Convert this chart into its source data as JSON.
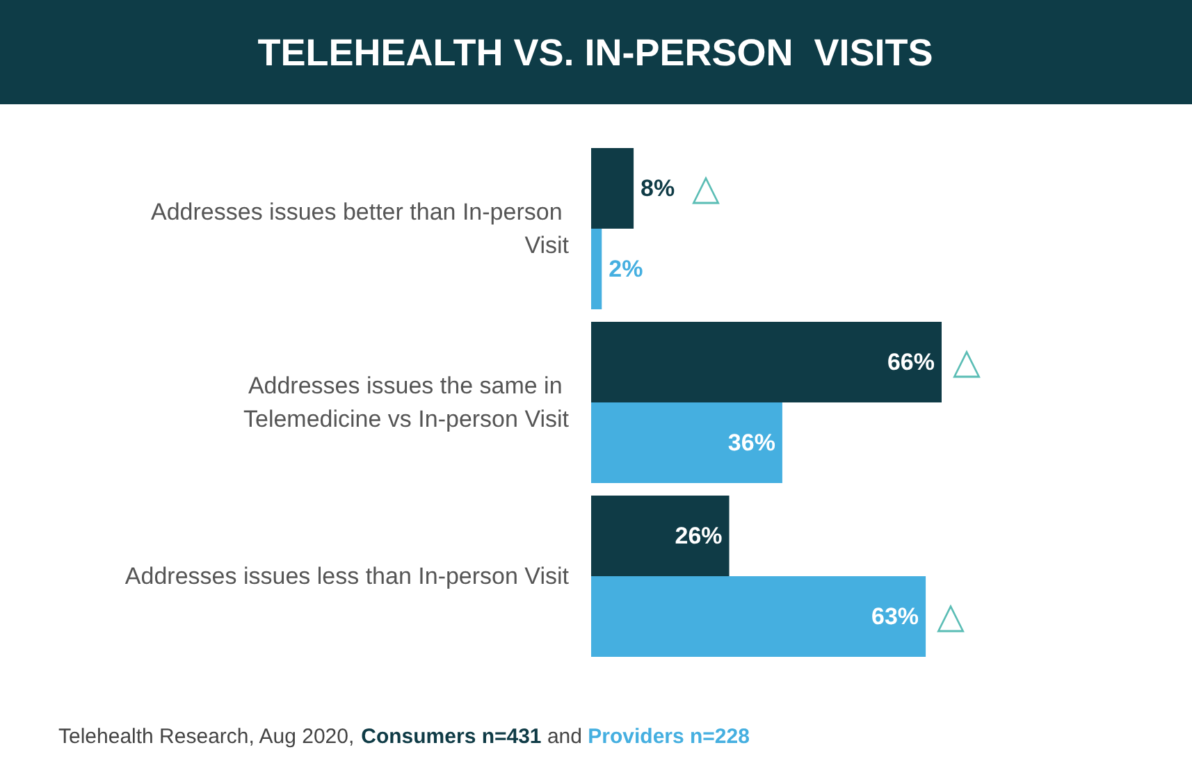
{
  "chart_data": {
    "type": "bar",
    "orientation": "horizontal",
    "title": "TELEHEALTH VS. IN-PERSON  VISITS",
    "categories": [
      "Addresses issues better than In-person Visit",
      "Addresses issues the same in Telemedicine vs In-person Visit",
      "Addresses issues less than In-person Visit"
    ],
    "series": [
      {
        "name": "Consumers n=431",
        "color": "#0f3b46",
        "values": [
          8,
          66,
          26
        ],
        "value_labels": [
          "8%",
          "66%",
          "26%"
        ]
      },
      {
        "name": "Providers n=228",
        "color": "#45afe0",
        "values": [
          2,
          36,
          63
        ],
        "value_labels": [
          "2%",
          "36%",
          "63%"
        ]
      }
    ],
    "legend": "bottom",
    "annotations": [
      "Telehealth Research, Aug 2020,",
      "and",
      {
        "text": "△",
        "x": 8,
        "y": "Addresses issues better than In-person Visit"
      },
      {
        "text": "△",
        "x": 66,
        "y": "Addresses issues the same in Telemedicine vs In-person Visit"
      },
      {
        "text": "△",
        "x": 63,
        "y": "Addresses issues less than In-person Visit"
      }
    ]
  }
}
